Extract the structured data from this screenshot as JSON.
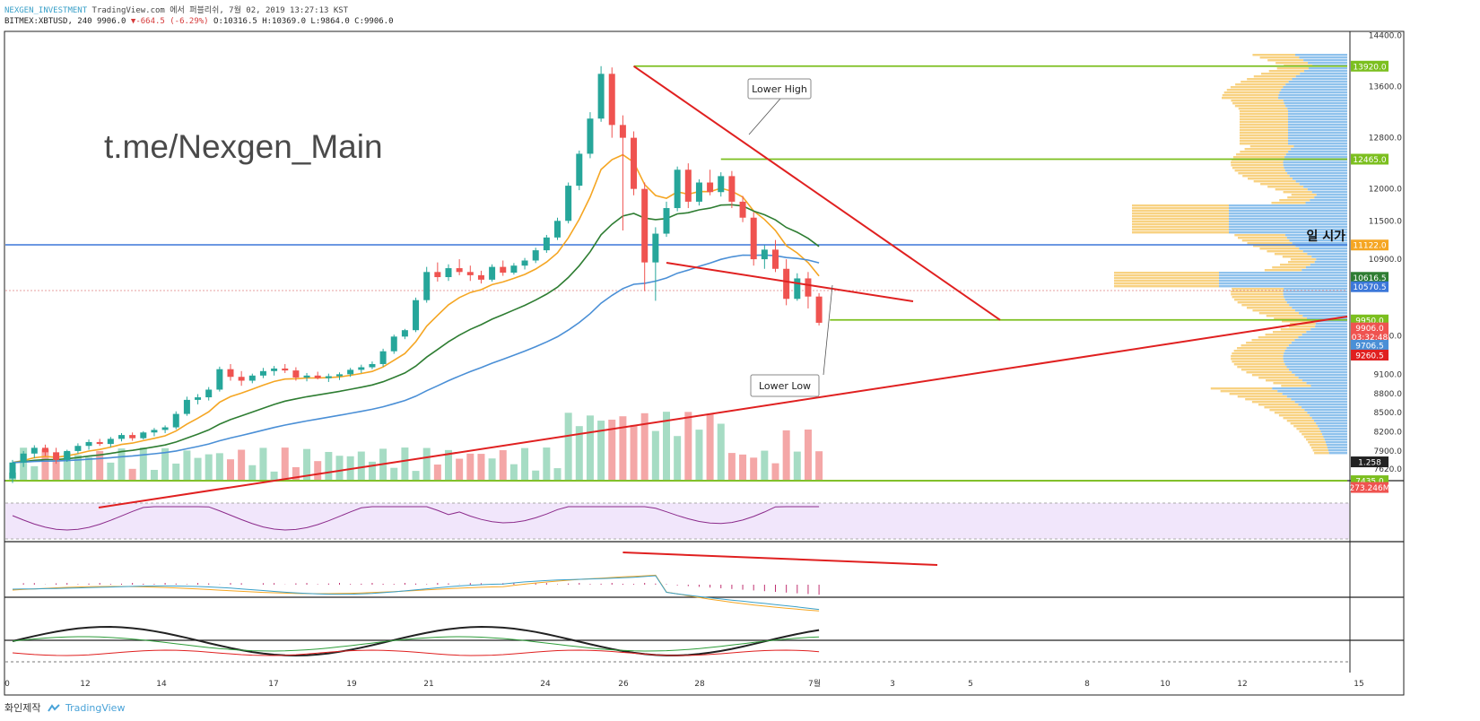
{
  "header": {
    "account": "NEXGEN_INVESTMENT",
    "published": "TradingView.com 에서 퍼블리쉬, 7월 02, 2019 13:27:13 KST",
    "symbol": "BITMEX:XBTUSD, 240",
    "last": "9906.0",
    "change": "-664.5 (-6.29%)",
    "ohlc": "O:10316.5 H:10369.0 L:9864.0 C:9906.0"
  },
  "watermark": "t.me/Nexgen_Main",
  "footer": {
    "label": "화인제작",
    "brand": "TradingView"
  },
  "colors": {
    "up": "#26a69a",
    "down": "#ef5350",
    "ema_short": "#f5a623",
    "ema_mid": "#2e7d32",
    "ema_long": "#4a8fd6",
    "trendline": "#e02020",
    "support": "#7cbf1f",
    "horizontal": "#3b77d9",
    "volume_profile_a": "#f6c763",
    "volume_profile_b": "#6aaee6"
  },
  "chart_data": {
    "type": "candlestick",
    "price_axis": {
      "range": [
        7450,
        14450
      ],
      "ticks": [
        "14400.0",
        "13600.0",
        "12800.0",
        "12000.0",
        "11500.0",
        "10900.0",
        "9700.0",
        "9100.0",
        "8800.0",
        "8500.0",
        "8200.0",
        "7900.0",
        "7620.0"
      ]
    },
    "time_axis": {
      "ticks": [
        "0",
        "12",
        "14",
        "17",
        "19",
        "21",
        "24",
        "26",
        "28",
        "7월",
        "3",
        "5",
        "8",
        "10",
        "12",
        "15"
      ]
    },
    "price_labels": [
      {
        "text": "13920.0",
        "price": 13920,
        "bg": "#7cbf1f",
        "fg": "#ffffff"
      },
      {
        "text": "12465.0",
        "price": 12465,
        "bg": "#7cbf1f",
        "fg": "#ffffff"
      },
      {
        "text": "11122.0",
        "price": 11122,
        "bg": "#f5a623",
        "fg": "#ffffff"
      },
      {
        "text": "10616.5",
        "price": 10616.5,
        "bg": "#2e7d32",
        "fg": "#ffffff"
      },
      {
        "text": "10570.5",
        "price": 10470,
        "bg": "#3b77d9",
        "fg": "#ffffff"
      },
      {
        "text": "9950.0",
        "price": 9950,
        "bg": "#7cbf1f",
        "fg": "#ffffff"
      },
      {
        "text": "9906.0",
        "price": 9825,
        "bg": "#ef5350",
        "fg": "#ffffff"
      },
      {
        "text": "03:32:48",
        "price": 9690,
        "bg": "#ef5350",
        "fg": "#ffffff"
      },
      {
        "text": "9706.5",
        "price": 9555,
        "bg": "#4a8fd6",
        "fg": "#ffffff"
      },
      {
        "text": "9260.5",
        "price": 9400,
        "bg": "#e02020",
        "fg": "#ffffff"
      },
      {
        "text": "1.258",
        "price": 7730,
        "bg": "#222222",
        "fg": "#ffffff"
      },
      {
        "text": "7435.0",
        "price": 7435,
        "bg": "#7cbf1f",
        "fg": "#ffffff"
      },
      {
        "text": "273.246M",
        "price": 7330,
        "bg": "#ef5350",
        "fg": "#ffffff"
      }
    ],
    "annotations": [
      {
        "text": "Lower High"
      },
      {
        "text": "Lower Low"
      },
      {
        "text": "일 시가"
      }
    ],
    "candles": [
      [
        7470,
        7760,
        7400,
        7720
      ],
      [
        7720,
        7900,
        7650,
        7860
      ],
      [
        7860,
        7990,
        7790,
        7950
      ],
      [
        7950,
        8000,
        7820,
        7880
      ],
      [
        7880,
        7950,
        7700,
        7760
      ],
      [
        7760,
        7920,
        7730,
        7900
      ],
      [
        7900,
        8020,
        7860,
        7980
      ],
      [
        7980,
        8080,
        7920,
        8040
      ],
      [
        8040,
        8090,
        7980,
        8010
      ],
      [
        8010,
        8120,
        7960,
        8090
      ],
      [
        8090,
        8180,
        8050,
        8150
      ],
      [
        8150,
        8190,
        8060,
        8100
      ],
      [
        8100,
        8210,
        8080,
        8190
      ],
      [
        8190,
        8260,
        8130,
        8230
      ],
      [
        8230,
        8300,
        8180,
        8270
      ],
      [
        8270,
        8520,
        8240,
        8480
      ],
      [
        8480,
        8750,
        8450,
        8700
      ],
      [
        8700,
        8790,
        8630,
        8740
      ],
      [
        8740,
        8900,
        8690,
        8860
      ],
      [
        8860,
        9220,
        8830,
        9180
      ],
      [
        9180,
        9260,
        9000,
        9060
      ],
      [
        9060,
        9150,
        8920,
        9000
      ],
      [
        9000,
        9110,
        8960,
        9080
      ],
      [
        9080,
        9200,
        9040,
        9150
      ],
      [
        9150,
        9230,
        9080,
        9190
      ],
      [
        9190,
        9260,
        9120,
        9160
      ],
      [
        9160,
        9210,
        9000,
        9050
      ],
      [
        9050,
        9120,
        8990,
        9080
      ],
      [
        9080,
        9140,
        9020,
        9040
      ],
      [
        9040,
        9110,
        8980,
        9070
      ],
      [
        9070,
        9130,
        9010,
        9100
      ],
      [
        9100,
        9200,
        9060,
        9170
      ],
      [
        9170,
        9250,
        9120,
        9210
      ],
      [
        9210,
        9300,
        9180,
        9260
      ],
      [
        9260,
        9500,
        9220,
        9460
      ],
      [
        9460,
        9720,
        9420,
        9690
      ],
      [
        9690,
        9810,
        9650,
        9790
      ],
      [
        9790,
        10300,
        9760,
        10260
      ],
      [
        10260,
        10780,
        10220,
        10700
      ],
      [
        10700,
        10850,
        10550,
        10620
      ],
      [
        10620,
        10820,
        10560,
        10760
      ],
      [
        10760,
        10900,
        10650,
        10700
      ],
      [
        10700,
        10800,
        10560,
        10650
      ],
      [
        10650,
        10720,
        10520,
        10580
      ],
      [
        10580,
        10820,
        10550,
        10780
      ],
      [
        10780,
        10880,
        10640,
        10690
      ],
      [
        10690,
        10840,
        10660,
        10800
      ],
      [
        10800,
        10920,
        10740,
        10880
      ],
      [
        10880,
        11080,
        10840,
        11040
      ],
      [
        11040,
        11280,
        11000,
        11240
      ],
      [
        11240,
        11550,
        11200,
        11500
      ],
      [
        11500,
        12100,
        11460,
        12050
      ],
      [
        12050,
        12600,
        11980,
        12550
      ],
      [
        12550,
        13200,
        12480,
        13100
      ],
      [
        13100,
        13920,
        13050,
        13800
      ],
      [
        13800,
        13900,
        12800,
        13000
      ],
      [
        13000,
        13150,
        11350,
        12800
      ],
      [
        12800,
        12900,
        11900,
        12000
      ],
      [
        12000,
        12100,
        10400,
        10850
      ],
      [
        10850,
        11400,
        10250,
        11300
      ],
      [
        11300,
        11800,
        11250,
        11700
      ],
      [
        11700,
        12350,
        11650,
        12300
      ],
      [
        12300,
        12400,
        11700,
        11800
      ],
      [
        11800,
        12150,
        11740,
        12100
      ],
      [
        12100,
        12300,
        11900,
        11950
      ],
      [
        11950,
        12260,
        11880,
        12200
      ],
      [
        12200,
        12280,
        11700,
        11800
      ],
      [
        11800,
        11890,
        11480,
        11550
      ],
      [
        11550,
        11640,
        10800,
        10900
      ],
      [
        10900,
        11120,
        10750,
        11050
      ],
      [
        11050,
        11200,
        10700,
        10750
      ],
      [
        10750,
        10900,
        10180,
        10280
      ],
      [
        10280,
        10680,
        10250,
        10600
      ],
      [
        10600,
        10700,
        10130,
        10316
      ],
      [
        10316,
        10369,
        9864,
        9906
      ]
    ]
  }
}
